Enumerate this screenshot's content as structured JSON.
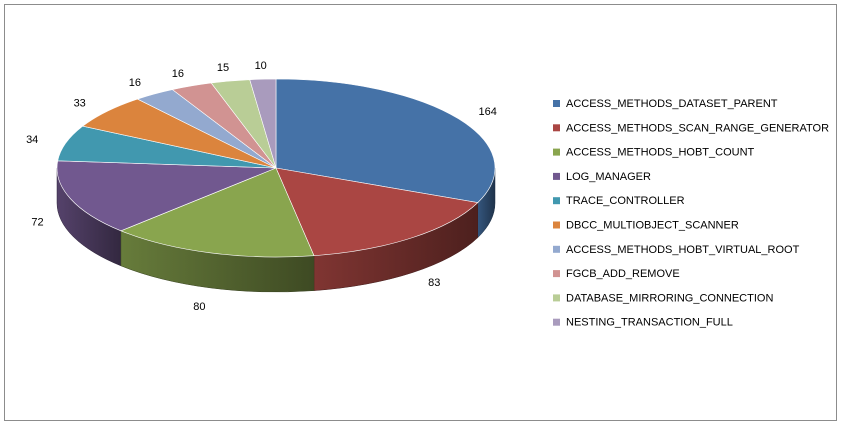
{
  "chart_data": {
    "type": "pie",
    "style": "3d",
    "legend_position": "right",
    "slices": [
      {
        "label": "ACCESS_METHODS_DATASET_PARENT",
        "value": 164,
        "color": "#4572A7"
      },
      {
        "label": "ACCESS_METHODS_SCAN_RANGE_GENERATOR",
        "value": 83,
        "color": "#AA4643"
      },
      {
        "label": "ACCESS_METHODS_HOBT_COUNT",
        "value": 80,
        "color": "#89A54E"
      },
      {
        "label": "LOG_MANAGER",
        "value": 72,
        "color": "#71588F"
      },
      {
        "label": "TRACE_CONTROLLER",
        "value": 34,
        "color": "#4198AF"
      },
      {
        "label": "DBCC_MULTIOBJECT_SCANNER",
        "value": 33,
        "color": "#DB843D"
      },
      {
        "label": "ACCESS_METHODS_HOBT_VIRTUAL_ROOT",
        "value": 16,
        "color": "#93A9CF"
      },
      {
        "label": "FGCB_ADD_REMOVE",
        "value": 16,
        "color": "#D19392"
      },
      {
        "label": "DATABASE_MIRRORING_CONNECTION",
        "value": 15,
        "color": "#B9CD96"
      },
      {
        "label": "NESTING_TRANSACTION_FULL",
        "value": 10,
        "color": "#A99BBD"
      }
    ]
  }
}
